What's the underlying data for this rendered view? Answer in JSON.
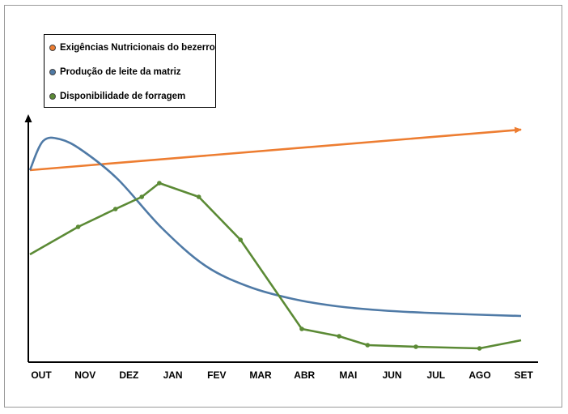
{
  "chart_data": {
    "type": "line",
    "title": "",
    "xlabel": "",
    "ylabel": "",
    "categories": [
      "OUT",
      "NOV",
      "DEZ",
      "JAN",
      "FEV",
      "MAR",
      "ABR",
      "MAI",
      "JUN",
      "JUL",
      "AGO",
      "SET"
    ],
    "grid": false,
    "legend_position": "top-left",
    "series": [
      {
        "name": "Exigências Nutricionais do bezerro",
        "color": "#ed7d31",
        "style": "straight-arrow",
        "x": [
          0,
          11.2
        ],
        "y": [
          234,
          284
        ]
      },
      {
        "name": "Produção de leite da matriz",
        "color": "#4f7aa6",
        "style": "smooth",
        "x": [
          0,
          0.3,
          0.7,
          1.2,
          2.0,
          3.0,
          4.0,
          5.0,
          6.0,
          7.0,
          8.0,
          9.0,
          10.0,
          11.2
        ],
        "y": [
          234,
          270,
          272,
          258,
          223,
          163,
          116,
          90,
          75,
          66,
          61,
          58,
          56,
          54
        ]
      },
      {
        "name": "Disponibilidade de forragem",
        "color": "#5b8a35",
        "style": "markers",
        "x": [
          0,
          1.1,
          1.95,
          2.55,
          2.95,
          3.85,
          4.8,
          6.2,
          7.05,
          7.7,
          8.8,
          10.25,
          11.2
        ],
        "y": [
          130,
          164,
          186,
          201,
          218,
          201,
          148,
          38,
          29,
          18,
          16,
          14,
          24
        ]
      }
    ]
  }
}
